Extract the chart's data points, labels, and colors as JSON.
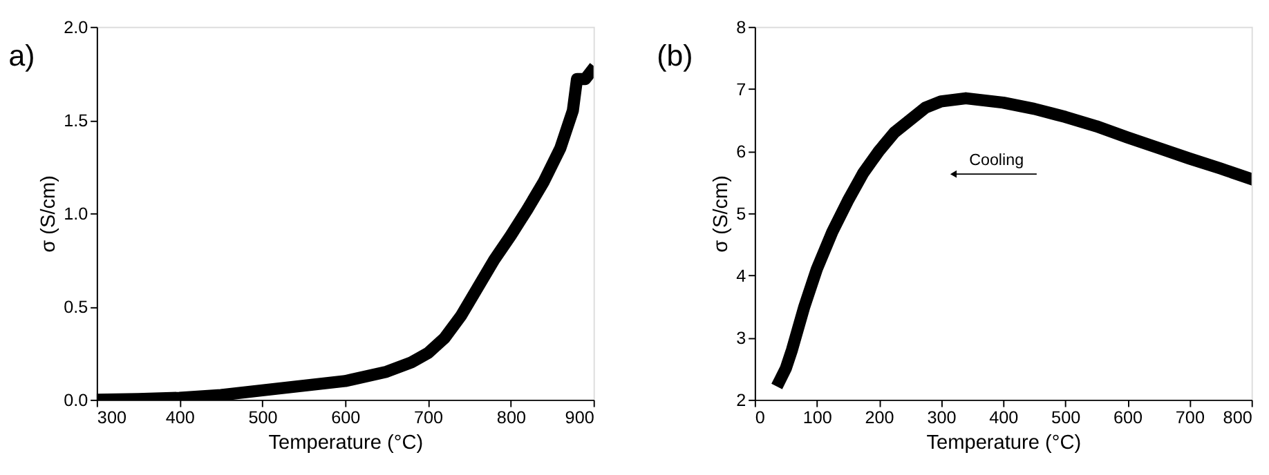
{
  "chart_data": [
    {
      "type": "line",
      "title": "a)",
      "xlabel": "Temperature (°C)",
      "ylabel": "σ (S/cm)",
      "xlim": [
        300,
        900
      ],
      "xticks": [
        300,
        400,
        500,
        600,
        700,
        800,
        900
      ],
      "ylim": [
        0,
        2.0
      ],
      "yticks": [
        {
          "value": 0,
          "label": "0.0"
        },
        {
          "value": 0.5,
          "label": "0.5"
        },
        {
          "value": 1.0,
          "label": "1.0"
        },
        {
          "value": 1.5,
          "label": "1.5"
        },
        {
          "value": 2.0,
          "label": "2.0"
        }
      ],
      "grid": false,
      "line_style": "solid",
      "series": [
        {
          "color": "#000000",
          "x": [
            300,
            350,
            400,
            450,
            500,
            550,
            600,
            650,
            680,
            700,
            720,
            740,
            760,
            780,
            800,
            820,
            840,
            860,
            875,
            880,
            890,
            897
          ],
          "values": [
            0.0,
            0.003,
            0.01,
            0.025,
            0.05,
            0.075,
            0.1,
            0.15,
            0.2,
            0.25,
            0.33,
            0.45,
            0.6,
            0.75,
            0.88,
            1.02,
            1.17,
            1.35,
            1.55,
            1.72,
            1.72,
            1.76
          ]
        }
      ]
    },
    {
      "type": "line",
      "title": "(b)",
      "xlabel": "Temperature (°C)",
      "ylabel": "σ (S/cm)",
      "xlim": [
        0,
        800
      ],
      "xticks": [
        0,
        100,
        200,
        300,
        400,
        500,
        600,
        700,
        800
      ],
      "ylim": [
        2,
        8
      ],
      "yticks": [
        2,
        3,
        4,
        5,
        6,
        7,
        8
      ],
      "grid": false,
      "line_style": "solid",
      "annotations": [
        {
          "text": "Cooling",
          "x": 320,
          "y": 5.63
        }
      ],
      "series": [
        {
          "color": "#000000",
          "x": [
            40,
            50,
            60,
            70,
            80,
            100,
            125,
            150,
            175,
            200,
            225,
            250,
            275,
            300,
            340,
            400,
            450,
            500,
            550,
            600,
            650,
            700,
            750,
            800
          ],
          "values": [
            2.3,
            2.5,
            2.8,
            3.15,
            3.5,
            4.1,
            4.7,
            5.2,
            5.65,
            6.0,
            6.3,
            6.5,
            6.7,
            6.8,
            6.85,
            6.78,
            6.68,
            6.55,
            6.4,
            6.22,
            6.05,
            5.88,
            5.72,
            5.55
          ]
        }
      ]
    }
  ]
}
